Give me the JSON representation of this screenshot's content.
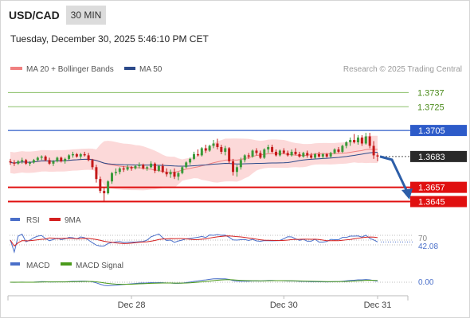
{
  "header": {
    "symbol": "USD/CAD",
    "timeframe": "30 MIN",
    "datetime": "Tuesday, December 30, 2025 5:46:10 PM CET"
  },
  "legend": {
    "ma20_label": "MA 20 + Bollinger Bands",
    "ma50_label": "MA 50",
    "ma20_color": "#f08080",
    "ma50_color": "#2c4a8a"
  },
  "credit": "Research © 2025 Trading Central",
  "colors": {
    "up": "#3a9a3a",
    "down": "#c41a1a",
    "band_fill": "#fbd2d2",
    "resistance": "#8cc06a",
    "pivot": "#2d5bc9",
    "support": "#e01010",
    "current": "#2a2a2a",
    "arrow": "#2d5ea8",
    "rsi": "#4a6fc9",
    "rsi_ma": "#d42020",
    "macd": "#4a6fc9",
    "macd_signal": "#4a9a1a"
  },
  "levels": [
    {
      "value": 1.3737,
      "label": "1.3737",
      "kind": "resistance"
    },
    {
      "value": 1.3725,
      "label": "1.3725",
      "kind": "resistance"
    },
    {
      "value": 1.3705,
      "label": "1.3705",
      "kind": "pivot"
    },
    {
      "value": 1.3683,
      "label": "1.3683",
      "kind": "current"
    },
    {
      "value": 1.3657,
      "label": "1.3657",
      "kind": "support"
    },
    {
      "value": 1.3645,
      "label": "1.3645",
      "kind": "support"
    }
  ],
  "chart_data": {
    "type": "candlestick",
    "title": "USD/CAD 30 MIN",
    "y_range": [
      1.3642,
      1.3748
    ],
    "x_ticks": [
      "Dec 28",
      "Dec 30",
      "Dec 31"
    ],
    "x_tick_index": [
      31,
      70,
      94
    ],
    "last_price": 1.3683,
    "projection_target": 1.3648,
    "candles": [
      [
        1.3679,
        1.3681,
        1.3676,
        1.3678
      ],
      [
        1.3678,
        1.368,
        1.3675,
        1.3677
      ],
      [
        1.3677,
        1.368,
        1.3676,
        1.3679
      ],
      [
        1.3679,
        1.3682,
        1.3677,
        1.368
      ],
      [
        1.368,
        1.3681,
        1.3676,
        1.3677
      ],
      [
        1.3677,
        1.3679,
        1.3675,
        1.3678
      ],
      [
        1.3678,
        1.3681,
        1.3677,
        1.368
      ],
      [
        1.368,
        1.3683,
        1.3679,
        1.3682
      ],
      [
        1.3682,
        1.3684,
        1.368,
        1.3683
      ],
      [
        1.3683,
        1.3684,
        1.3679,
        1.368
      ],
      [
        1.368,
        1.3682,
        1.3676,
        1.3677
      ],
      [
        1.3677,
        1.368,
        1.3675,
        1.3679
      ],
      [
        1.3679,
        1.3683,
        1.3678,
        1.3682
      ],
      [
        1.3682,
        1.3683,
        1.3678,
        1.3679
      ],
      [
        1.3679,
        1.3682,
        1.3677,
        1.3681
      ],
      [
        1.3681,
        1.3685,
        1.368,
        1.3684
      ],
      [
        1.3684,
        1.3687,
        1.3682,
        1.3685
      ],
      [
        1.3685,
        1.3686,
        1.3682,
        1.3683
      ],
      [
        1.3683,
        1.3686,
        1.3681,
        1.3685
      ],
      [
        1.3685,
        1.3687,
        1.3683,
        1.3684
      ],
      [
        1.3684,
        1.3686,
        1.3679,
        1.368
      ],
      [
        1.368,
        1.3681,
        1.3672,
        1.3674
      ],
      [
        1.3674,
        1.3676,
        1.3661,
        1.3664
      ],
      [
        1.3664,
        1.3666,
        1.3652,
        1.3654
      ],
      [
        1.3654,
        1.3657,
        1.3645,
        1.3652
      ],
      [
        1.3652,
        1.3663,
        1.3651,
        1.3662
      ],
      [
        1.3662,
        1.367,
        1.366,
        1.3669
      ],
      [
        1.3669,
        1.3673,
        1.3667,
        1.367
      ],
      [
        1.367,
        1.3674,
        1.3668,
        1.3673
      ],
      [
        1.3673,
        1.3675,
        1.367,
        1.3672
      ],
      [
        1.3672,
        1.3676,
        1.3671,
        1.3674
      ],
      [
        1.3674,
        1.3675,
        1.3671,
        1.3673
      ],
      [
        1.3673,
        1.3676,
        1.3672,
        1.3675
      ],
      [
        1.3675,
        1.3678,
        1.3673,
        1.3676
      ],
      [
        1.3676,
        1.3677,
        1.3672,
        1.3673
      ],
      [
        1.3673,
        1.3675,
        1.3671,
        1.3674
      ],
      [
        1.3674,
        1.3679,
        1.3673,
        1.3677
      ],
      [
        1.3677,
        1.3678,
        1.3669,
        1.3671
      ],
      [
        1.3671,
        1.3676,
        1.367,
        1.3675
      ],
      [
        1.3675,
        1.3677,
        1.3669,
        1.367
      ],
      [
        1.367,
        1.3673,
        1.3666,
        1.3668
      ],
      [
        1.3668,
        1.3672,
        1.3665,
        1.367
      ],
      [
        1.367,
        1.3673,
        1.3664,
        1.3666
      ],
      [
        1.3666,
        1.367,
        1.3663,
        1.3669
      ],
      [
        1.3669,
        1.3675,
        1.3668,
        1.3674
      ],
      [
        1.3674,
        1.3679,
        1.3673,
        1.3678
      ],
      [
        1.3678,
        1.3682,
        1.3676,
        1.3681
      ],
      [
        1.3681,
        1.3687,
        1.368,
        1.3685
      ],
      [
        1.3685,
        1.3689,
        1.3683,
        1.3684
      ],
      [
        1.3684,
        1.3691,
        1.3683,
        1.369
      ],
      [
        1.369,
        1.3693,
        1.3686,
        1.3688
      ],
      [
        1.3688,
        1.3693,
        1.3687,
        1.3692
      ],
      [
        1.3692,
        1.3697,
        1.369,
        1.3694
      ],
      [
        1.3694,
        1.3698,
        1.3689,
        1.3691
      ],
      [
        1.3691,
        1.3693,
        1.3685,
        1.3687
      ],
      [
        1.3687,
        1.3692,
        1.3684,
        1.369
      ],
      [
        1.369,
        1.3691,
        1.3677,
        1.3679
      ],
      [
        1.3679,
        1.3681,
        1.3667,
        1.367
      ],
      [
        1.367,
        1.3676,
        1.3666,
        1.3674
      ],
      [
        1.3674,
        1.3682,
        1.3672,
        1.368
      ],
      [
        1.368,
        1.3685,
        1.3678,
        1.3684
      ],
      [
        1.3684,
        1.3686,
        1.3681,
        1.3683
      ],
      [
        1.3683,
        1.3689,
        1.3682,
        1.3688
      ],
      [
        1.3688,
        1.369,
        1.3684,
        1.3686
      ],
      [
        1.3686,
        1.3688,
        1.3681,
        1.3682
      ],
      [
        1.3682,
        1.369,
        1.3681,
        1.3689
      ],
      [
        1.3689,
        1.3693,
        1.3686,
        1.3691
      ],
      [
        1.3691,
        1.3693,
        1.3686,
        1.3687
      ],
      [
        1.3687,
        1.3689,
        1.3683,
        1.3684
      ],
      [
        1.3684,
        1.3689,
        1.3683,
        1.3688
      ],
      [
        1.3688,
        1.369,
        1.3685,
        1.3686
      ],
      [
        1.3686,
        1.3688,
        1.3683,
        1.3684
      ],
      [
        1.3684,
        1.3689,
        1.3683,
        1.3687
      ],
      [
        1.3687,
        1.369,
        1.3684,
        1.3685
      ],
      [
        1.3685,
        1.3687,
        1.3682,
        1.3683
      ],
      [
        1.3683,
        1.3687,
        1.3682,
        1.3686
      ],
      [
        1.3686,
        1.3688,
        1.3682,
        1.3684
      ],
      [
        1.3684,
        1.3686,
        1.3681,
        1.3682
      ],
      [
        1.3682,
        1.3686,
        1.3681,
        1.3685
      ],
      [
        1.3685,
        1.3687,
        1.3682,
        1.3683
      ],
      [
        1.3683,
        1.3686,
        1.3681,
        1.3685
      ],
      [
        1.3685,
        1.3686,
        1.3682,
        1.3683
      ],
      [
        1.3683,
        1.3687,
        1.3682,
        1.3686
      ],
      [
        1.3686,
        1.369,
        1.3685,
        1.3689
      ],
      [
        1.3689,
        1.3691,
        1.3686,
        1.3687
      ],
      [
        1.3687,
        1.3693,
        1.3686,
        1.3692
      ],
      [
        1.3692,
        1.3696,
        1.369,
        1.3695
      ],
      [
        1.3695,
        1.3699,
        1.3692,
        1.3697
      ],
      [
        1.3697,
        1.3702,
        1.3694,
        1.3695
      ],
      [
        1.3695,
        1.3701,
        1.3693,
        1.3699
      ],
      [
        1.3699,
        1.3701,
        1.3692,
        1.3694
      ],
      [
        1.3694,
        1.3703,
        1.3693,
        1.37
      ],
      [
        1.37,
        1.3703,
        1.369,
        1.3692
      ],
      [
        1.3692,
        1.3696,
        1.3681,
        1.3684
      ],
      [
        1.3684,
        1.3686,
        1.3679,
        1.3683
      ]
    ],
    "rsi": {
      "label": "RSI",
      "ma_label": "9MA",
      "level": 70,
      "value_label": "42.08",
      "range": [
        0,
        100
      ]
    },
    "macd": {
      "label": "MACD",
      "signal_label": "MACD Signal",
      "value_label": "0.00",
      "range": [
        -0.0012,
        0.0012
      ]
    }
  }
}
